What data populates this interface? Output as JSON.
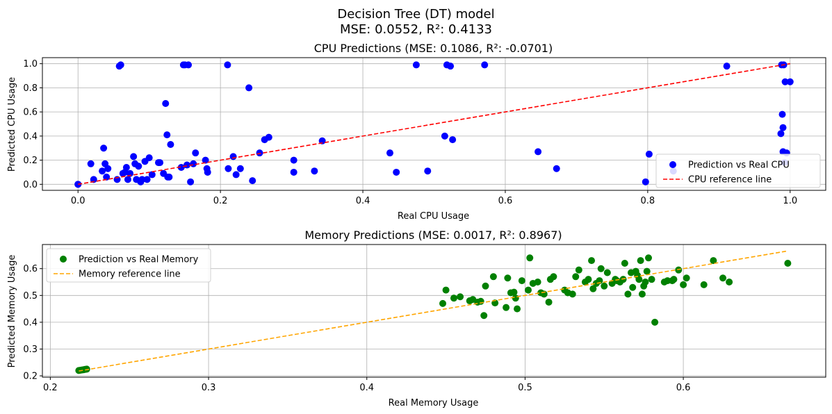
{
  "figure": {
    "title_line1": "Decision Tree (DT) model",
    "title_line2": "MSE: 0.0552, R²: 0.4133"
  },
  "chart_data": [
    {
      "type": "scatter",
      "title": "CPU Predictions (MSE: 0.1086, R²: -0.0701)",
      "xlabel": "Real CPU Usage",
      "ylabel": "Predicted CPU Usage",
      "xlim": [
        -0.05,
        1.05
      ],
      "ylim": [
        -0.05,
        1.05
      ],
      "xticks": [
        0.0,
        0.2,
        0.4,
        0.6,
        0.8,
        1.0
      ],
      "xtick_labels": [
        "0.0",
        "0.2",
        "0.4",
        "0.6",
        "0.8",
        "1.0"
      ],
      "yticks": [
        0.0,
        0.2,
        0.4,
        0.6,
        0.8,
        1.0
      ],
      "ytick_labels": [
        "0.0",
        "0.2",
        "0.4",
        "0.6",
        "0.8",
        "1.0"
      ],
      "grid": true,
      "legend_position": "lower-right",
      "series": [
        {
          "name": "Prediction vs Real CPU",
          "kind": "scatter",
          "color": "#0000ff",
          "x": [
            0.0,
            0.0,
            0.018,
            0.022,
            0.034,
            0.036,
            0.038,
            0.04,
            0.042,
            0.055,
            0.058,
            0.06,
            0.063,
            0.066,
            0.068,
            0.07,
            0.073,
            0.078,
            0.08,
            0.082,
            0.085,
            0.088,
            0.09,
            0.094,
            0.097,
            0.1,
            0.104,
            0.113,
            0.115,
            0.12,
            0.123,
            0.125,
            0.126,
            0.128,
            0.13,
            0.145,
            0.148,
            0.15,
            0.153,
            0.155,
            0.158,
            0.162,
            0.165,
            0.179,
            0.181,
            0.182,
            0.21,
            0.211,
            0.218,
            0.222,
            0.228,
            0.24,
            0.245,
            0.255,
            0.262,
            0.268,
            0.303,
            0.303,
            0.332,
            0.343,
            0.438,
            0.447,
            0.475,
            0.491,
            0.515,
            0.518,
            0.523,
            0.526,
            0.571,
            0.646,
            0.672,
            0.797,
            0.802,
            0.836,
            0.911,
            0.987,
            0.988,
            0.989,
            0.99,
            0.99,
            0.991,
            0.992,
            0.993,
            0.995,
            1.0
          ],
          "y": [
            0.0,
            0.0,
            0.17,
            0.04,
            0.11,
            0.3,
            0.17,
            0.06,
            0.13,
            0.04,
            0.98,
            0.99,
            0.09,
            0.1,
            0.14,
            0.04,
            0.09,
            0.23,
            0.17,
            0.04,
            0.15,
            0.02,
            0.04,
            0.19,
            0.04,
            0.22,
            0.08,
            0.18,
            0.18,
            0.09,
            0.67,
            0.41,
            0.06,
            0.06,
            0.33,
            0.14,
            0.99,
            0.99,
            0.16,
            0.99,
            0.02,
            0.17,
            0.26,
            0.2,
            0.13,
            0.1,
            0.99,
            0.13,
            0.23,
            0.08,
            0.13,
            0.8,
            0.03,
            0.26,
            0.37,
            0.39,
            0.2,
            0.1,
            0.11,
            0.36,
            0.26,
            0.1,
            0.99,
            0.11,
            0.4,
            0.99,
            0.98,
            0.37,
            0.99,
            0.27,
            0.13,
            0.02,
            0.25,
            0.11,
            0.98,
            0.42,
            0.99,
            0.58,
            0.27,
            0.47,
            0.99,
            0.18,
            0.85,
            0.26,
            0.85
          ]
        },
        {
          "name": "CPU reference line",
          "kind": "line",
          "color": "#ff0000",
          "dash": "dashed",
          "x": [
            0.0,
            1.0
          ],
          "y": [
            0.0,
            1.0
          ]
        }
      ]
    },
    {
      "type": "scatter",
      "title": "Memory Predictions (MSE: 0.0017, R²: 0.8967)",
      "xlabel": "Real Memory Usage",
      "ylabel": "Predicted Memory Usage",
      "xlim": [
        0.195,
        0.69
      ],
      "ylim": [
        0.195,
        0.69
      ],
      "xticks": [
        0.2,
        0.3,
        0.4,
        0.5,
        0.6
      ],
      "xtick_labels": [
        "0.2",
        "0.3",
        "0.4",
        "0.5",
        "0.6"
      ],
      "yticks": [
        0.2,
        0.3,
        0.4,
        0.5,
        0.6
      ],
      "ytick_labels": [
        "0.2",
        "0.3",
        "0.4",
        "0.5",
        "0.6"
      ],
      "grid": true,
      "legend_position": "upper-left",
      "series": [
        {
          "name": "Prediction vs Real Memory",
          "kind": "scatter",
          "color": "#008000",
          "x": [
            0.218,
            0.219,
            0.22,
            0.221,
            0.222,
            0.223,
            0.448,
            0.45,
            0.455,
            0.459,
            0.465,
            0.467,
            0.47,
            0.472,
            0.474,
            0.475,
            0.48,
            0.481,
            0.488,
            0.489,
            0.491,
            0.493,
            0.494,
            0.495,
            0.498,
            0.502,
            0.503,
            0.505,
            0.508,
            0.51,
            0.512,
            0.515,
            0.516,
            0.518,
            0.525,
            0.527,
            0.53,
            0.532,
            0.534,
            0.538,
            0.54,
            0.542,
            0.543,
            0.545,
            0.547,
            0.548,
            0.55,
            0.552,
            0.555,
            0.557,
            0.558,
            0.56,
            0.562,
            0.563,
            0.565,
            0.567,
            0.568,
            0.57,
            0.571,
            0.572,
            0.573,
            0.574,
            0.575,
            0.576,
            0.577,
            0.578,
            0.58,
            0.582,
            0.588,
            0.59,
            0.593,
            0.594,
            0.597,
            0.6,
            0.602,
            0.613,
            0.619,
            0.625,
            0.629,
            0.666
          ],
          "y": [
            0.22,
            0.221,
            0.222,
            0.223,
            0.224,
            0.225,
            0.47,
            0.52,
            0.49,
            0.495,
            0.48,
            0.485,
            0.475,
            0.478,
            0.425,
            0.535,
            0.57,
            0.472,
            0.455,
            0.565,
            0.51,
            0.512,
            0.49,
            0.45,
            0.555,
            0.52,
            0.64,
            0.545,
            0.55,
            0.51,
            0.505,
            0.475,
            0.56,
            0.57,
            0.52,
            0.51,
            0.505,
            0.57,
            0.595,
            0.55,
            0.56,
            0.63,
            0.525,
            0.545,
            0.555,
            0.6,
            0.535,
            0.585,
            0.545,
            0.56,
            0.555,
            0.55,
            0.56,
            0.62,
            0.505,
            0.585,
            0.53,
            0.59,
            0.575,
            0.56,
            0.63,
            0.505,
            0.535,
            0.55,
            0.59,
            0.64,
            0.56,
            0.4,
            0.55,
            0.555,
            0.555,
            0.56,
            0.595,
            0.54,
            0.565,
            0.54,
            0.63,
            0.565,
            0.55,
            0.62
          ]
        },
        {
          "name": "Memory reference line",
          "kind": "line",
          "color": "#ffa500",
          "dash": "dashed",
          "x": [
            0.218,
            0.666
          ],
          "y": [
            0.218,
            0.666
          ]
        }
      ]
    }
  ]
}
